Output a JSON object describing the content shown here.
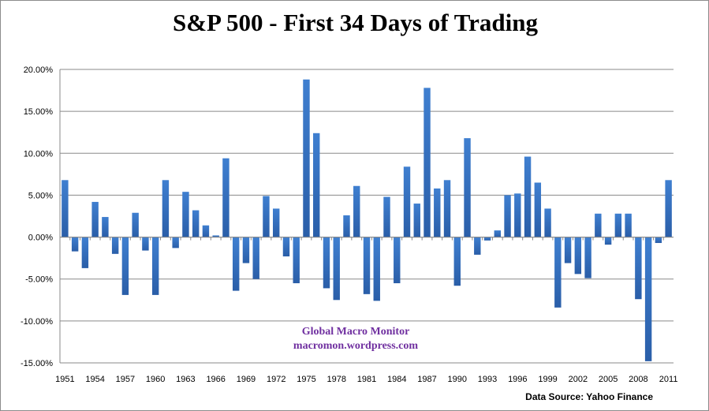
{
  "chart_data": {
    "type": "bar",
    "title": "S&P 500 - First 34 Days of Trading",
    "xlabel": "",
    "ylabel": "",
    "ylim": [
      -15,
      20
    ],
    "yticks": [
      "-15.00%",
      "-10.00%",
      "-5.00%",
      "0.00%",
      "5.00%",
      "10.00%",
      "15.00%",
      "20.00%"
    ],
    "ytick_values": [
      -15,
      -10,
      -5,
      0,
      5,
      10,
      15,
      20
    ],
    "grid": true,
    "bar_color": "#3a75c4",
    "categories": [
      1951,
      1952,
      1953,
      1954,
      1955,
      1956,
      1957,
      1958,
      1959,
      1960,
      1961,
      1962,
      1963,
      1964,
      1965,
      1966,
      1967,
      1968,
      1969,
      1970,
      1971,
      1972,
      1973,
      1974,
      1975,
      1976,
      1977,
      1978,
      1979,
      1980,
      1981,
      1982,
      1983,
      1984,
      1985,
      1986,
      1987,
      1988,
      1989,
      1990,
      1991,
      1992,
      1993,
      1994,
      1995,
      1996,
      1997,
      1998,
      1999,
      2000,
      2001,
      2002,
      2003,
      2004,
      2005,
      2006,
      2007,
      2008,
      2009,
      2010,
      2011
    ],
    "xtick_labels": [
      "1951",
      "1954",
      "1957",
      "1960",
      "1963",
      "1966",
      "1969",
      "1972",
      "1975",
      "1978",
      "1981",
      "1984",
      "1987",
      "1990",
      "1993",
      "1996",
      "1999",
      "2002",
      "2005",
      "2008",
      "2011"
    ],
    "values": [
      6.8,
      -1.7,
      -3.7,
      4.2,
      2.4,
      -2.0,
      -6.9,
      2.9,
      -1.6,
      -6.9,
      6.8,
      -1.3,
      5.4,
      3.2,
      1.4,
      0.2,
      9.4,
      -6.4,
      -3.1,
      -5.0,
      4.9,
      3.4,
      -2.3,
      -5.5,
      18.8,
      12.4,
      -6.1,
      -7.5,
      2.6,
      6.1,
      -6.8,
      -7.6,
      4.8,
      -5.5,
      8.4,
      4.0,
      17.8,
      5.8,
      6.8,
      -5.8,
      11.8,
      -2.1,
      -0.4,
      0.8,
      5.0,
      5.2,
      9.6,
      6.5,
      3.4,
      -8.4,
      -3.1,
      -4.4,
      -4.9,
      2.8,
      -0.9,
      2.8,
      2.8,
      -7.4,
      -14.8,
      -0.7,
      6.8
    ]
  },
  "watermark": {
    "line1": "Global Macro Monitor",
    "line2": "macromon.wordpress.com"
  },
  "source": "Data Source:  Yahoo Finance"
}
